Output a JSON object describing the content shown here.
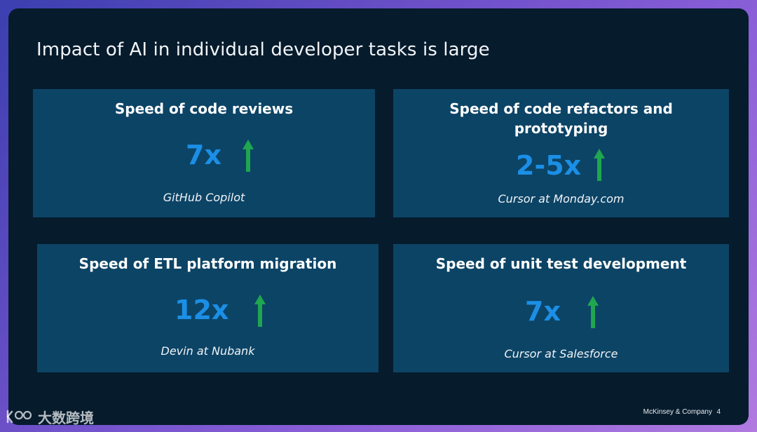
{
  "slide": {
    "title": "Impact of AI in individual developer tasks is large",
    "cards": [
      {
        "heading_lines": [
          "Speed of code reviews"
        ],
        "metric": "7x",
        "trend": "up",
        "source": "GitHub Copilot"
      },
      {
        "heading_lines": [
          "Speed of code refactors and",
          "prototyping"
        ],
        "metric": "2-5x",
        "trend": "up",
        "source": "Cursor at Monday.com"
      },
      {
        "heading_lines": [
          "Speed of ETL platform migration"
        ],
        "metric": "12x",
        "trend": "up",
        "source": "Devin at Nubank"
      },
      {
        "heading_lines": [
          "Speed of unit test development"
        ],
        "metric": "7x",
        "trend": "up",
        "source": "Cursor at Salesforce"
      }
    ],
    "footer": {
      "brand": "McKinsey & Company",
      "page_number": "4"
    }
  },
  "watermark": {
    "text": "大数跨境"
  },
  "colors": {
    "slide_background": "#061b2c",
    "card_background": "#0c4466",
    "metric": "#1b8fe6",
    "arrow": "#1fa64f"
  },
  "icons": {
    "trend": "up-arrow-icon"
  }
}
